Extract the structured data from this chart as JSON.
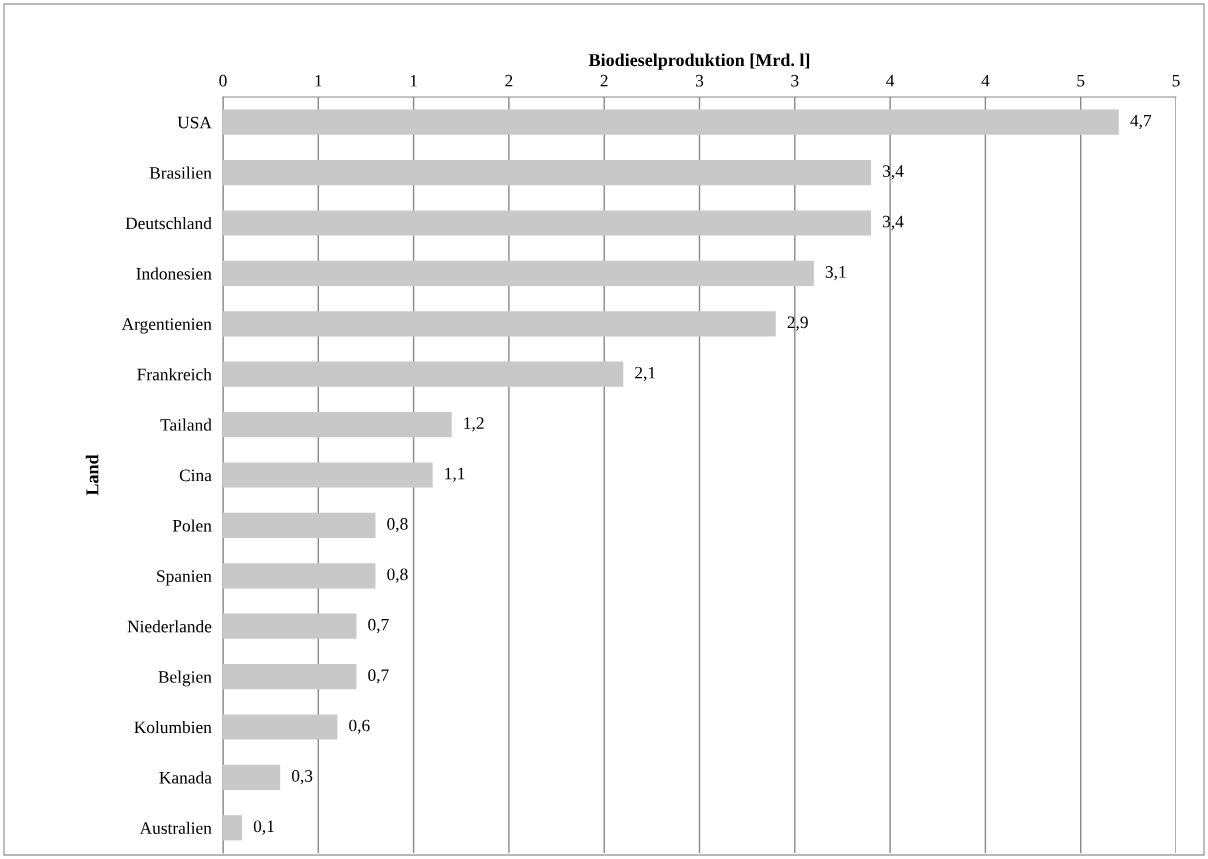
{
  "chart_data": {
    "type": "bar",
    "orientation": "horizontal",
    "xlabel": "Biodieselproduktion [Mrd. l]",
    "ylabel": "Land",
    "categories": [
      "USA",
      "Brasilien",
      "Deutschland",
      "Indonesien",
      "Argentienien",
      "Frankreich",
      "Tailand",
      "Cina",
      "Polen",
      "Spanien",
      "Niederlande",
      "Belgien",
      "Kolumbien",
      "Kanada",
      "Australien"
    ],
    "values": [
      4.7,
      3.4,
      3.4,
      3.1,
      2.9,
      2.1,
      1.2,
      1.1,
      0.8,
      0.8,
      0.7,
      0.7,
      0.6,
      0.3,
      0.1
    ],
    "value_labels": [
      "4,7",
      "3,4",
      "3,4",
      "3,1",
      "2,9",
      "2,1",
      "1,2",
      "1,1",
      "0,8",
      "0,8",
      "0,7",
      "0,7",
      "0,6",
      "0,3",
      "0,1"
    ],
    "color": "#c8c8c8",
    "xlim": [
      0,
      5
    ],
    "xticks": [
      0,
      {
        "value": 0.5,
        "label": "1"
      },
      1,
      {
        "value": 1.5,
        "label": "2"
      },
      2,
      {
        "value": 2.5,
        "label": "3"
      },
      3,
      {
        "value": 3.5,
        "label": "4"
      },
      4,
      {
        "value": 4.5,
        "label": "5"
      },
      5
    ],
    "grid": "x"
  }
}
